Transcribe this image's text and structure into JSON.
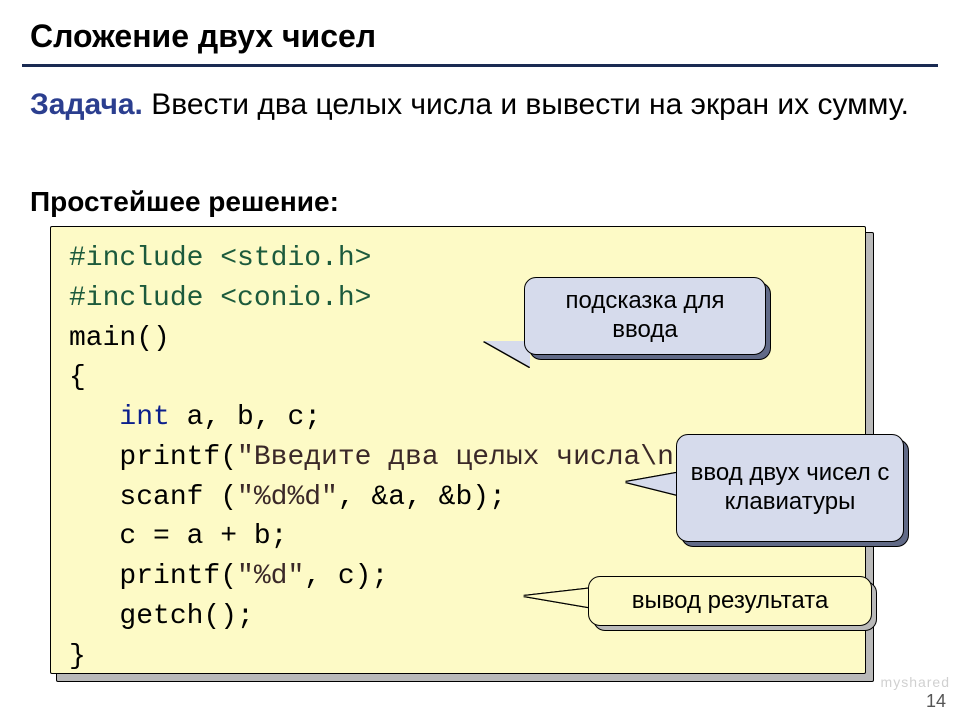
{
  "title": "Сложение двух чисел",
  "task": {
    "label": "Задача.",
    "text": " Ввести два целых числа и вывести на экран их сумму."
  },
  "solution_label": "Простейшее решение:",
  "code": {
    "l1a": "#include ",
    "l1b": "<stdio.h>",
    "l2a": "#include ",
    "l2b": "<conio.h>",
    "l3": "main()",
    "l4": "{",
    "l5a": "   ",
    "l5b": "int",
    "l5c": " a, b, c;",
    "l6a": "   printf(",
    "l6b": "\"Введите два целых числа\\n\"",
    "l6c": ");",
    "l7a": "   scanf (",
    "l7b": "\"%d%d\"",
    "l7c": ", &a, &b);",
    "l8": "   c = a + b;",
    "l9a": "   printf(",
    "l9b": "\"%d\"",
    "l9c": ", c);",
    "l10": "   getch();",
    "l11": "}"
  },
  "callouts": {
    "hint": "подсказка для ввода",
    "input": "ввод двух чисел с клавиатуры",
    "output": "вывод результата"
  },
  "page_number": "14",
  "watermark": "myshared"
}
